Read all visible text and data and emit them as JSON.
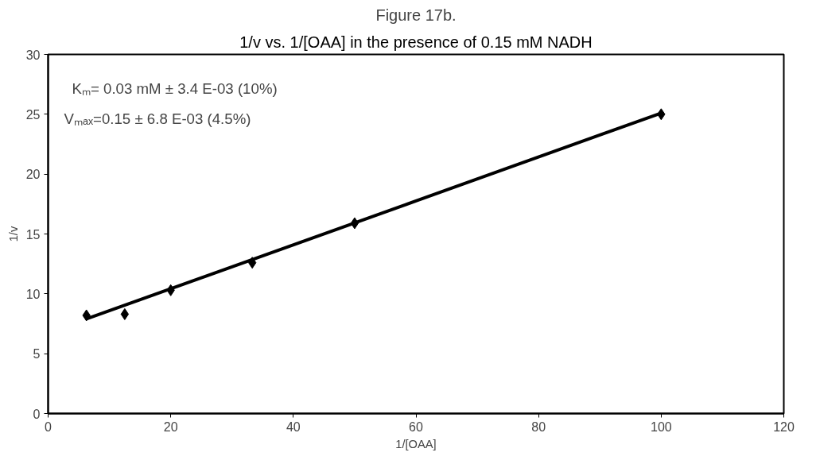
{
  "chart_data": {
    "type": "scatter",
    "title": "Figure 17b.",
    "subtitle": "1/v vs. 1/[OAA] in the presence of 0.15 mM NADH",
    "xlabel": "1/[OAA]",
    "ylabel": "1/v",
    "series": [
      {
        "color": "#000000",
        "marker": "diamond",
        "x": [
          6.25,
          12.5,
          20,
          33.3,
          50,
          100
        ],
        "values": [
          8.2,
          8.3,
          10.3,
          12.6,
          15.9,
          25.0
        ]
      },
      {
        "type": "line",
        "color": "#000000",
        "marker": "none",
        "x": [
          6.25,
          100
        ],
        "values": [
          7.9,
          25.1
        ]
      }
    ],
    "annotations": [
      "Kₘ= 0.03 mM ± 3.4 E-03 (10%)",
      "Vₘₐₓ=0.15 ± 6.8 E-03 (4.5%)"
    ],
    "xlim": [
      0,
      120
    ],
    "xticks": [
      0,
      20,
      40,
      60,
      80,
      100,
      120
    ],
    "ylim": [
      0,
      30
    ],
    "yticks": [
      0,
      5,
      10,
      15,
      20,
      25,
      30
    ],
    "grid": false
  }
}
